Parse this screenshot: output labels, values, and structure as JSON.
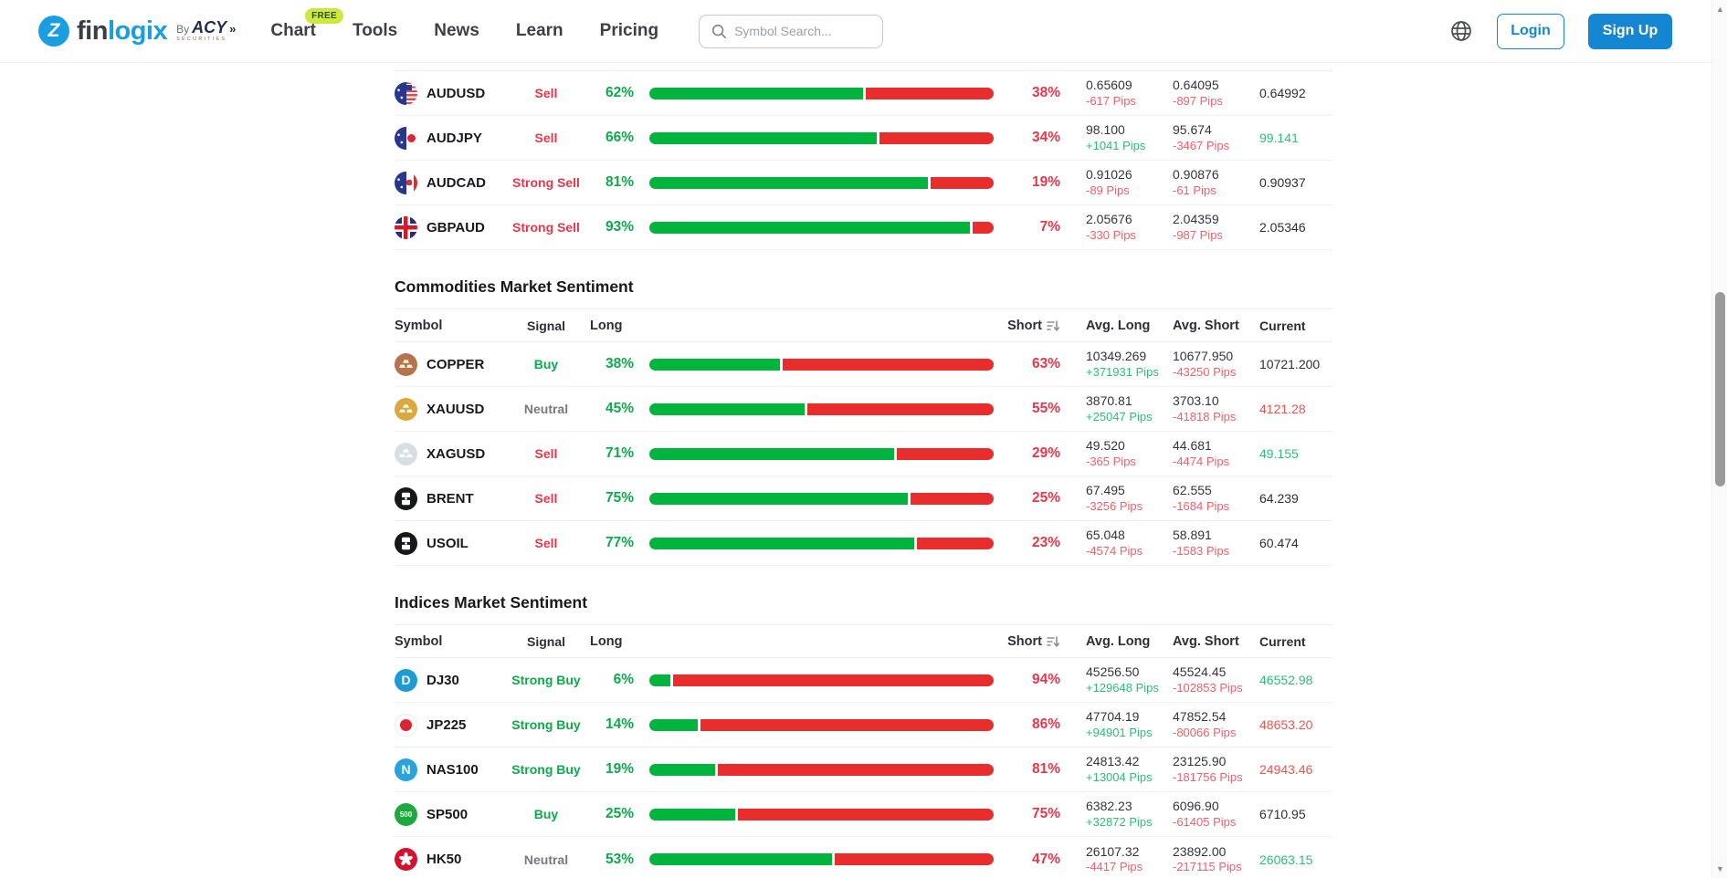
{
  "brand": {
    "mark": "Z",
    "name_p1": "fin",
    "name_p2": "logix",
    "by": "By",
    "acy": "ACY",
    "chevron": "»",
    "securities": "SECURITIES"
  },
  "nav": [
    {
      "label": "Chart",
      "badge": "FREE"
    },
    {
      "label": "Tools"
    },
    {
      "label": "News"
    },
    {
      "label": "Learn"
    },
    {
      "label": "Pricing"
    }
  ],
  "search": {
    "placeholder": "Symbol Search..."
  },
  "auth": {
    "login": "Login",
    "signup": "Sign Up"
  },
  "columns": {
    "symbol": "Symbol",
    "signal": "Signal",
    "long": "Long",
    "short": "Short",
    "avg_long": "Avg. Long",
    "avg_short": "Avg. Short",
    "current": "Current"
  },
  "colors": {
    "accent_blue": "#1486d2",
    "logo_blue": "#1b9de2",
    "bar_green": "#00b43d",
    "bar_red": "#e92c2c",
    "text_green": "#0cab49",
    "text_red": "#e8374a",
    "pips_green": "#2ebd78",
    "pips_red": "#f0606b",
    "neutral_gray": "#77797e",
    "badge_bg": "#cde93d"
  },
  "sections": [
    {
      "title": null,
      "show_header": false,
      "rows": [
        {
          "symbol": "AUDUSD",
          "icon": {
            "kind": "flagpair",
            "right": "us"
          },
          "signal": "Sell",
          "long": 62,
          "short": 38,
          "avg_long": "0.65609",
          "avg_long_pips": "-617 Pips",
          "avg_short": "0.64095",
          "avg_short_pips": "-897 Pips",
          "current": "0.64992",
          "current_dir": "neutral"
        },
        {
          "symbol": "AUDJPY",
          "icon": {
            "kind": "flagpair",
            "right": "jp"
          },
          "signal": "Sell",
          "long": 66,
          "short": 34,
          "avg_long": "98.100",
          "avg_long_pips": "+1041 Pips",
          "avg_short": "95.674",
          "avg_short_pips": "-3467 Pips",
          "current": "99.141",
          "current_dir": "up"
        },
        {
          "symbol": "AUDCAD",
          "icon": {
            "kind": "flagpair",
            "right": "ca"
          },
          "signal": "Strong Sell",
          "long": 81,
          "short": 19,
          "avg_long": "0.91026",
          "avg_long_pips": "-89 Pips",
          "avg_short": "0.90876",
          "avg_short_pips": "-61 Pips",
          "current": "0.90937",
          "current_dir": "neutral"
        },
        {
          "symbol": "GBPAUD",
          "icon": {
            "kind": "uk"
          },
          "signal": "Strong Sell",
          "long": 93,
          "short": 7,
          "avg_long": "2.05676",
          "avg_long_pips": "-330 Pips",
          "avg_short": "2.04359",
          "avg_short_pips": "-987 Pips",
          "current": "2.05346",
          "current_dir": "neutral"
        }
      ]
    },
    {
      "title": "Commodities Market Sentiment",
      "show_header": true,
      "rows": [
        {
          "symbol": "COPPER",
          "icon": {
            "kind": "ingot",
            "bg": "#b5744d",
            "bar": "#fff3d6"
          },
          "signal": "Buy",
          "long": 38,
          "short": 63,
          "avg_long": "10349.269",
          "avg_long_pips": "+371931 Pips",
          "avg_short": "10677.950",
          "avg_short_pips": "-43250 Pips",
          "current": "10721.200",
          "current_dir": "neutral"
        },
        {
          "symbol": "XAUUSD",
          "icon": {
            "kind": "ingot",
            "bg": "#dca940",
            "bar": "#fff8e6"
          },
          "signal": "Neutral",
          "long": 45,
          "short": 55,
          "avg_long": "3870.81",
          "avg_long_pips": "+25047 Pips",
          "avg_short": "3703.10",
          "avg_short_pips": "-41818 Pips",
          "current": "4121.28",
          "current_dir": "down"
        },
        {
          "symbol": "XAGUSD",
          "icon": {
            "kind": "ingot",
            "bg": "#d8dfe3",
            "bar": "#ffffff"
          },
          "signal": "Sell",
          "long": 71,
          "short": 29,
          "avg_long": "49.520",
          "avg_long_pips": "-365 Pips",
          "avg_short": "44.681",
          "avg_short_pips": "-4474 Pips",
          "current": "49.155",
          "current_dir": "up"
        },
        {
          "symbol": "BRENT",
          "icon": {
            "kind": "barrel",
            "bg": "#17181c"
          },
          "signal": "Sell",
          "long": 75,
          "short": 25,
          "avg_long": "67.495",
          "avg_long_pips": "-3256 Pips",
          "avg_short": "62.555",
          "avg_short_pips": "-1684 Pips",
          "current": "64.239",
          "current_dir": "neutral"
        },
        {
          "symbol": "USOIL",
          "icon": {
            "kind": "barrel",
            "bg": "#17181c"
          },
          "signal": "Sell",
          "long": 77,
          "short": 23,
          "avg_long": "65.048",
          "avg_long_pips": "-4574 Pips",
          "avg_short": "58.891",
          "avg_short_pips": "-1583 Pips",
          "current": "60.474",
          "current_dir": "neutral"
        }
      ]
    },
    {
      "title": "Indices Market Sentiment",
      "show_header": true,
      "rows": [
        {
          "symbol": "DJ30",
          "icon": {
            "kind": "letter",
            "bg": "#1e9ad6",
            "text": "D",
            "size": 14
          },
          "signal": "Strong Buy",
          "long": 6,
          "short": 94,
          "avg_long": "45256.50",
          "avg_long_pips": "+129648 Pips",
          "avg_short": "45524.45",
          "avg_short_pips": "-102853 Pips",
          "current": "46552.98",
          "current_dir": "up"
        },
        {
          "symbol": "JP225",
          "icon": {
            "kind": "jpdot"
          },
          "signal": "Strong Buy",
          "long": 14,
          "short": 86,
          "avg_long": "47704.19",
          "avg_long_pips": "+94901 Pips",
          "avg_short": "47852.54",
          "avg_short_pips": "-80066 Pips",
          "current": "48653.20",
          "current_dir": "down"
        },
        {
          "symbol": "NAS100",
          "icon": {
            "kind": "letter",
            "bg": "#29a3dc",
            "text": "N",
            "size": 14
          },
          "signal": "Strong Buy",
          "long": 19,
          "short": 81,
          "avg_long": "24813.42",
          "avg_long_pips": "+13004 Pips",
          "avg_short": "23125.90",
          "avg_short_pips": "-181756 Pips",
          "current": "24943.46",
          "current_dir": "down"
        },
        {
          "symbol": "SP500",
          "icon": {
            "kind": "letter",
            "bg": "#1fa83e",
            "text": "500",
            "size": 8
          },
          "signal": "Buy",
          "long": 25,
          "short": 75,
          "avg_long": "6382.23",
          "avg_long_pips": "+32872 Pips",
          "avg_short": "6096.90",
          "avg_short_pips": "-61405 Pips",
          "current": "6710.95",
          "current_dir": "neutral"
        },
        {
          "symbol": "HK50",
          "icon": {
            "kind": "flower",
            "bg": "#d2122e"
          },
          "signal": "Neutral",
          "long": 53,
          "short": 47,
          "avg_long": "26107.32",
          "avg_long_pips": "-4417 Pips",
          "avg_short": "23892.00",
          "avg_short_pips": "-217115 Pips",
          "current": "26063.15",
          "current_dir": "up"
        }
      ]
    }
  ]
}
